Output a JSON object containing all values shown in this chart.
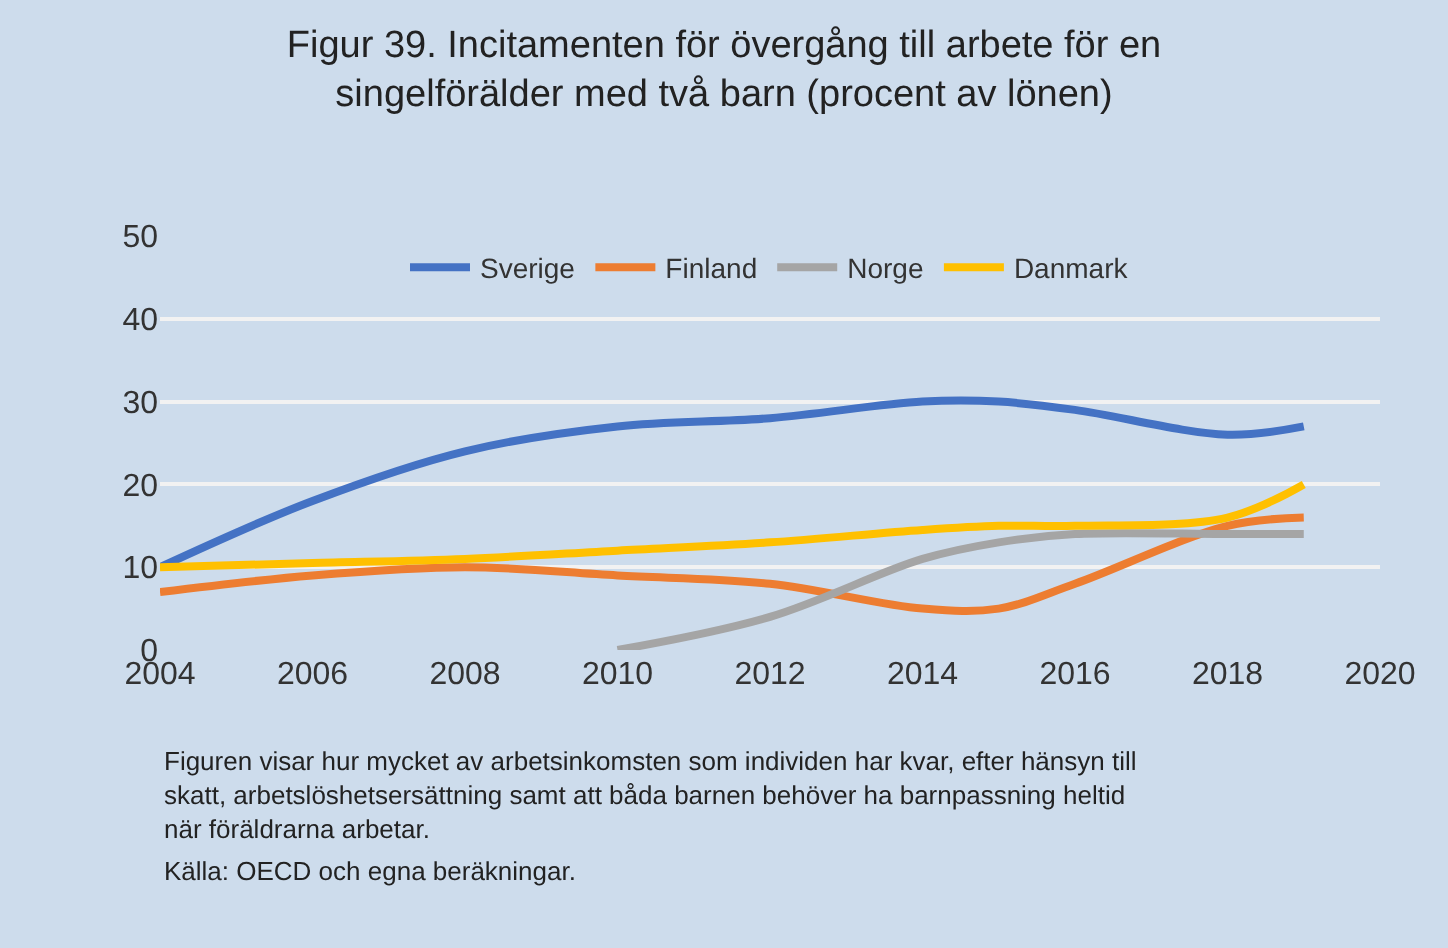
{
  "chart_data": {
    "type": "line",
    "title": "Figur 39. Incitamenten för övergång till arbete för en singelförälder med två barn (procent av lönen)",
    "x": [
      2004,
      2006,
      2008,
      2010,
      2012,
      2014,
      2015,
      2016,
      2018,
      2019
    ],
    "series": [
      {
        "name": "Sverige",
        "color": "#4472c4",
        "values": [
          10,
          18,
          24,
          27,
          28,
          30,
          30,
          29,
          26,
          27
        ]
      },
      {
        "name": "Finland",
        "color": "#ed7d31",
        "values": [
          7,
          9,
          10,
          9,
          8,
          5,
          5,
          8,
          15,
          16
        ]
      },
      {
        "name": "Norge",
        "color": "#a5a5a5",
        "values": [
          null,
          null,
          null,
          0,
          4,
          11,
          13,
          14,
          14,
          14
        ]
      },
      {
        "name": "Danmark",
        "color": "#ffc000",
        "values": [
          10,
          10.5,
          11,
          12,
          13,
          14.5,
          15,
          15,
          16,
          20
        ]
      }
    ],
    "xlim": [
      2004,
      2020
    ],
    "xticks": [
      2004,
      2006,
      2008,
      2010,
      2012,
      2014,
      2016,
      2018,
      2020
    ],
    "ylim": [
      0,
      50
    ],
    "yticks": [
      0,
      10,
      20,
      30,
      40,
      50
    ],
    "grid": "y",
    "legend": "top",
    "marker": "none",
    "line_style": "solid",
    "annotations": [
      "Figuren visar hur mycket av arbetsinkomsten som individen har kvar, efter hänsyn till skatt, arbetslöshetsersättning samt att båda barnen behöver ha barnpassning heltid när föräldrarna arbetar.",
      "Källa: OECD och egna beräkningar."
    ]
  }
}
